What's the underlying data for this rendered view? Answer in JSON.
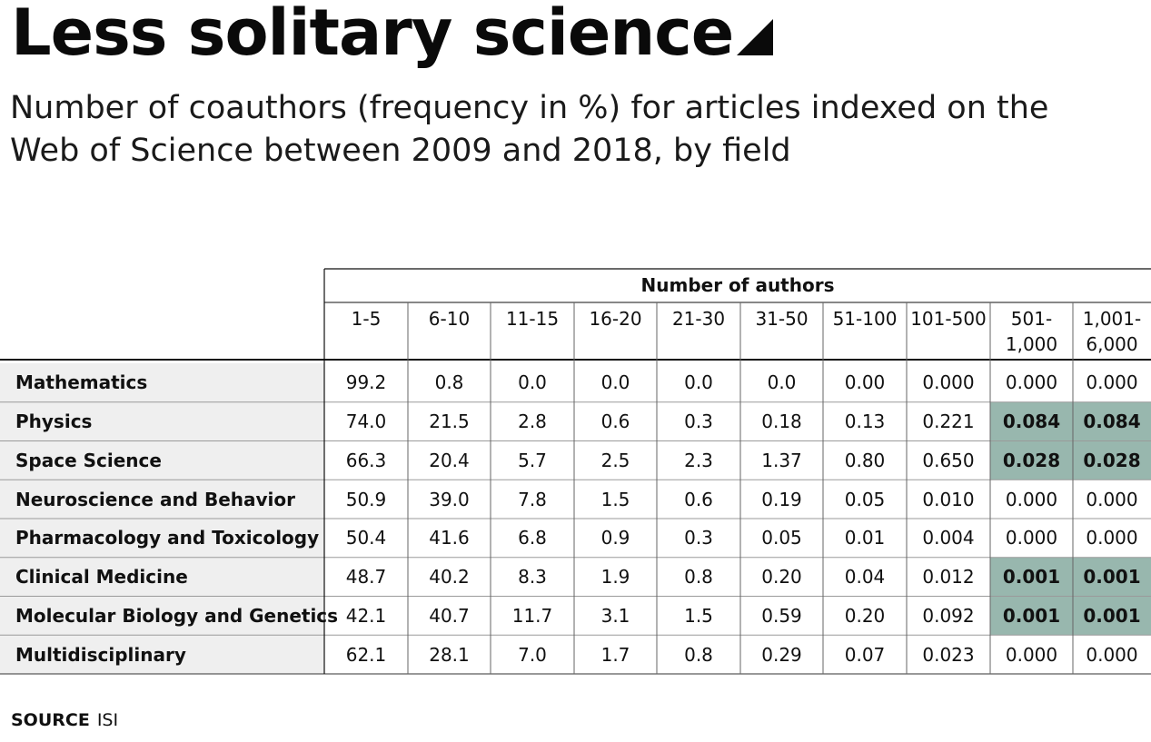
{
  "title": "Less solitary science",
  "subtitle": "Number of coauthors (frequency in %) for articles indexed on the Web of Science between 2009 and 2018, by field",
  "source": {
    "label": "SOURCE",
    "value": "ISI"
  },
  "colors": {
    "highlight": "#98b7ae",
    "label_column_bg": "#efefef",
    "grid": "#666666"
  },
  "chart_data": {
    "type": "table",
    "column_group_label": "Number of authors",
    "columns": [
      "1-5",
      "6-10",
      "11-15",
      "16-20",
      "21-30",
      "31-50",
      "51-100",
      "101-500",
      "501-\n1,000",
      "1,001-\n6,000"
    ],
    "rows": [
      {
        "field": "Mathematics",
        "values": [
          "99.2",
          "0.8",
          "0.0",
          "0.0",
          "0.0",
          "0.0",
          "0.00",
          "0.000",
          "0.000",
          "0.000"
        ],
        "highlighted": []
      },
      {
        "field": "Physics",
        "values": [
          "74.0",
          "21.5",
          "2.8",
          "0.6",
          "0.3",
          "0.18",
          "0.13",
          "0.221",
          "0.084",
          "0.084"
        ],
        "highlighted": [
          8,
          9
        ]
      },
      {
        "field": "Space Science",
        "values": [
          "66.3",
          "20.4",
          "5.7",
          "2.5",
          "2.3",
          "1.37",
          "0.80",
          "0.650",
          "0.028",
          "0.028"
        ],
        "highlighted": [
          8,
          9
        ]
      },
      {
        "field": "Neuroscience and Behavior",
        "values": [
          "50.9",
          "39.0",
          "7.8",
          "1.5",
          "0.6",
          "0.19",
          "0.05",
          "0.010",
          "0.000",
          "0.000"
        ],
        "highlighted": []
      },
      {
        "field": "Pharmacology and Toxicology",
        "values": [
          "50.4",
          "41.6",
          "6.8",
          "0.9",
          "0.3",
          "0.05",
          "0.01",
          "0.004",
          "0.000",
          "0.000"
        ],
        "highlighted": []
      },
      {
        "field": "Clinical Medicine",
        "values": [
          "48.7",
          "40.2",
          "8.3",
          "1.9",
          "0.8",
          "0.20",
          "0.04",
          "0.012",
          "0.001",
          "0.001"
        ],
        "highlighted": [
          8,
          9
        ]
      },
      {
        "field": "Molecular Biology and Genetics",
        "values": [
          "42.1",
          "40.7",
          "11.7",
          "3.1",
          "1.5",
          "0.59",
          "0.20",
          "0.092",
          "0.001",
          "0.001"
        ],
        "highlighted": [
          8,
          9
        ]
      },
      {
        "field": "Multidisciplinary",
        "values": [
          "62.1",
          "28.1",
          "7.0",
          "1.7",
          "0.8",
          "0.29",
          "0.07",
          "0.023",
          "0.000",
          "0.000"
        ],
        "highlighted": []
      }
    ]
  }
}
